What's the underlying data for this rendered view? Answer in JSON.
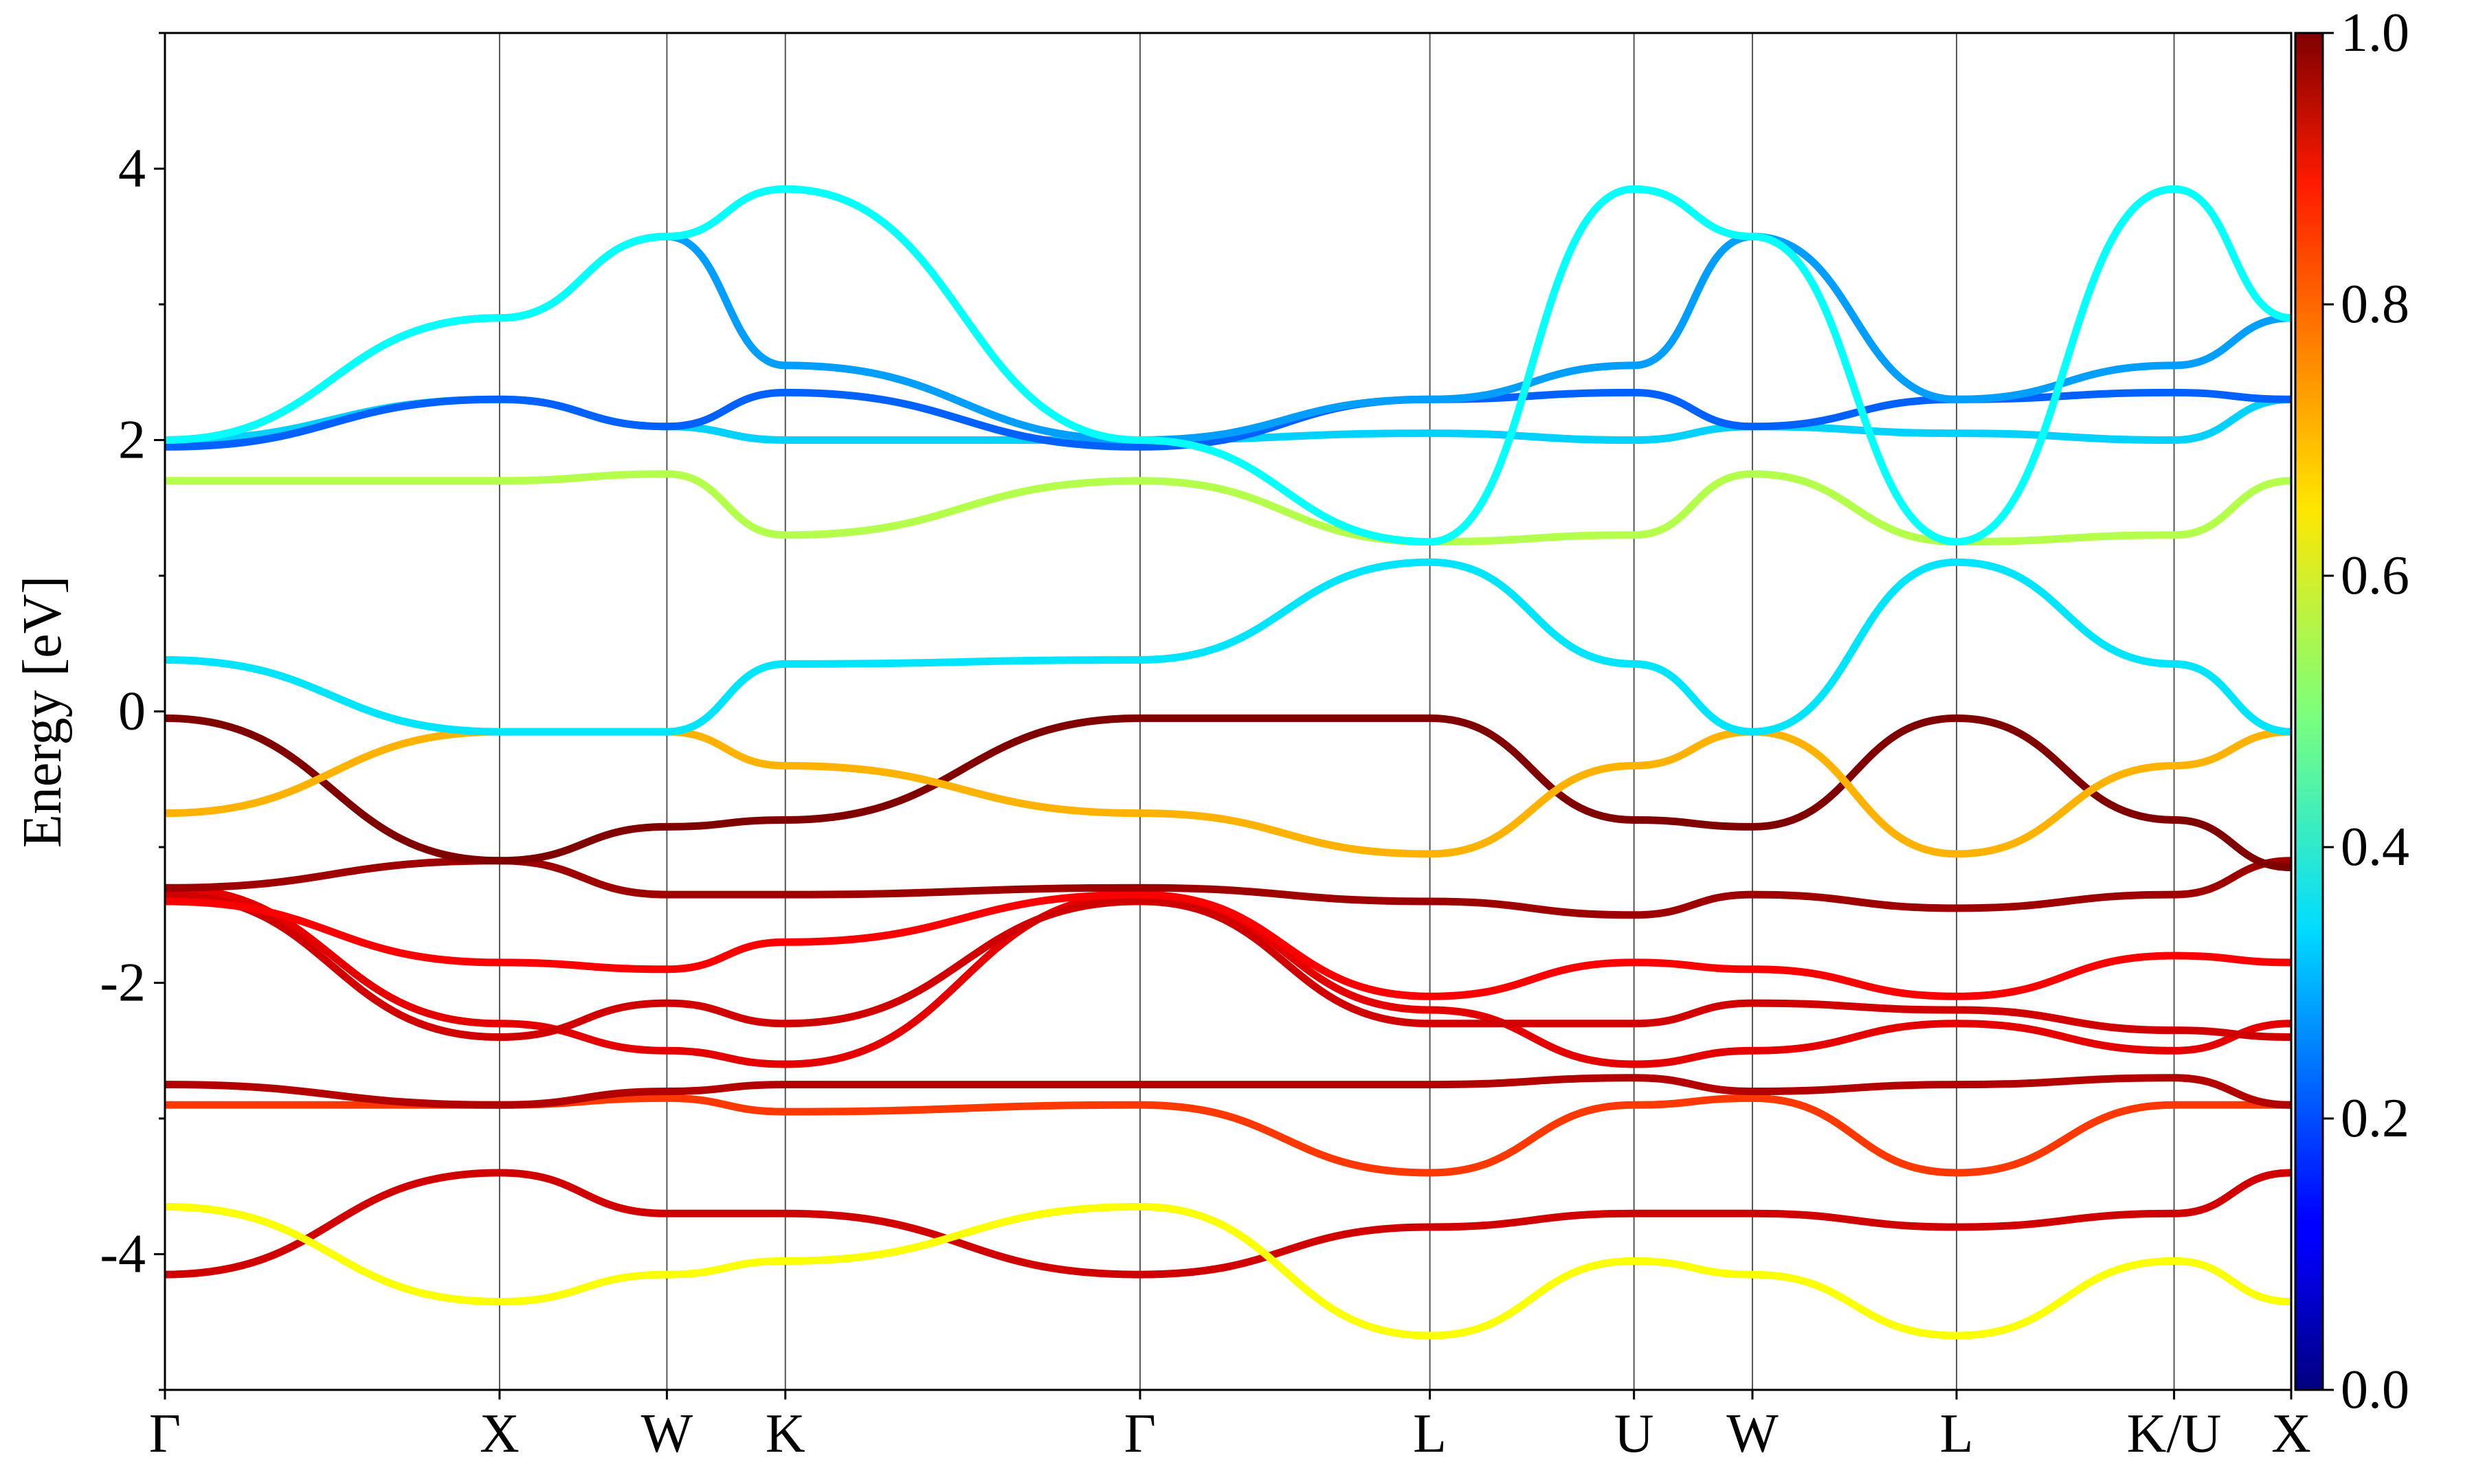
{
  "chart_data": {
    "type": "line",
    "title": "",
    "ylabel": "Energy [eV]",
    "xlabel": "",
    "ylim": [
      -5,
      5
    ],
    "y_ticks": [
      -4,
      -2,
      0,
      2,
      4
    ],
    "y_tick_labels": [
      "-4",
      "-2",
      "0",
      "2",
      "4"
    ],
    "k_path": {
      "labels": [
        "Γ",
        "X",
        "W",
        "K",
        "Γ",
        "L",
        "U",
        "W",
        "L",
        "K/U",
        "X"
      ],
      "positions": [
        0.0,
        1.0,
        1.5,
        1.854,
        2.914,
        3.78,
        4.39,
        4.744,
        5.354,
        6.004,
        6.354
      ]
    },
    "colorbar": {
      "colormap": "jet",
      "range": [
        0.0,
        1.0
      ],
      "ticks": [
        0.0,
        0.2,
        0.4,
        0.6,
        0.8,
        1.0
      ],
      "tick_labels": [
        "0.0",
        "0.2",
        "0.4",
        "0.6",
        "0.8",
        "1.0"
      ]
    },
    "bands": [
      {
        "name": "",
        "weight": 0.92,
        "values": [
          -4.15,
          -3.4,
          -3.7,
          -3.7,
          -4.15,
          -3.8,
          -3.7,
          -3.7,
          -3.8,
          -3.7,
          -3.4
        ]
      },
      {
        "name": "",
        "weight": 0.62,
        "values": [
          -3.65,
          -4.35,
          -4.15,
          -4.05,
          -3.65,
          -4.6,
          -4.05,
          -4.15,
          -4.6,
          -4.05,
          -4.35
        ]
      },
      {
        "name": "",
        "weight": 0.82,
        "values": [
          -2.9,
          -2.9,
          -2.85,
          -2.95,
          -2.9,
          -3.4,
          -2.9,
          -2.85,
          -3.4,
          -2.9,
          -2.9
        ]
      },
      {
        "name": "",
        "weight": 0.95,
        "values": [
          -2.75,
          -2.9,
          -2.8,
          -2.75,
          -2.75,
          -2.75,
          -2.7,
          -2.8,
          -2.75,
          -2.7,
          -2.9
        ]
      },
      {
        "name": "",
        "weight": 0.9,
        "values": [
          -1.3,
          -2.3,
          -2.5,
          -2.6,
          -1.35,
          -2.2,
          -2.6,
          -2.5,
          -2.3,
          -2.5,
          -2.3
        ]
      },
      {
        "name": "",
        "weight": 0.92,
        "values": [
          -1.35,
          -2.4,
          -2.15,
          -2.3,
          -1.4,
          -2.3,
          -2.3,
          -2.15,
          -2.2,
          -2.35,
          -2.4
        ]
      },
      {
        "name": "",
        "weight": 0.88,
        "values": [
          -1.4,
          -1.85,
          -1.9,
          -1.7,
          -1.35,
          -2.1,
          -1.85,
          -1.9,
          -2.1,
          -1.8,
          -1.85
        ]
      },
      {
        "name": "",
        "weight": 0.97,
        "values": [
          -1.3,
          -1.1,
          -1.35,
          -1.35,
          -1.3,
          -1.4,
          -1.5,
          -1.35,
          -1.45,
          -1.35,
          -1.1
        ]
      },
      {
        "name": "",
        "weight": 1.0,
        "values": [
          -0.05,
          -1.1,
          -0.85,
          -0.8,
          -0.05,
          -0.05,
          -0.8,
          -0.85,
          -0.05,
          -0.8,
          -1.15
        ]
      },
      {
        "name": "",
        "weight": 0.7,
        "values": [
          -0.75,
          -0.15,
          -0.15,
          -0.4,
          -0.75,
          -1.05,
          -0.4,
          -0.15,
          -1.05,
          -0.4,
          -0.15
        ]
      },
      {
        "name": "",
        "weight": 0.35,
        "values": [
          0.38,
          -0.15,
          -0.15,
          0.35,
          0.38,
          1.1,
          0.35,
          -0.15,
          1.1,
          0.35,
          -0.15
        ]
      },
      {
        "name": "",
        "weight": 0.55,
        "values": [
          1.7,
          1.7,
          1.75,
          1.3,
          1.7,
          1.25,
          1.3,
          1.75,
          1.25,
          1.3,
          1.7
        ]
      },
      {
        "name": "",
        "weight": 0.33,
        "values": [
          2.0,
          2.3,
          2.1,
          2.0,
          2.0,
          2.05,
          2.0,
          2.1,
          2.05,
          2.0,
          2.3
        ]
      },
      {
        "name": "",
        "weight": 0.22,
        "values": [
          1.95,
          2.3,
          2.1,
          2.35,
          1.95,
          2.3,
          2.35,
          2.1,
          2.3,
          2.35,
          2.3
        ]
      },
      {
        "name": "",
        "weight": 0.28,
        "values": [
          2.0,
          2.9,
          3.5,
          2.55,
          2.0,
          2.3,
          2.55,
          3.5,
          2.3,
          2.55,
          2.9
        ]
      },
      {
        "name": "",
        "weight": 0.38,
        "values": [
          2.0,
          2.9,
          3.5,
          3.85,
          2.0,
          1.25,
          3.85,
          3.5,
          1.25,
          3.85,
          2.9
        ]
      }
    ]
  }
}
